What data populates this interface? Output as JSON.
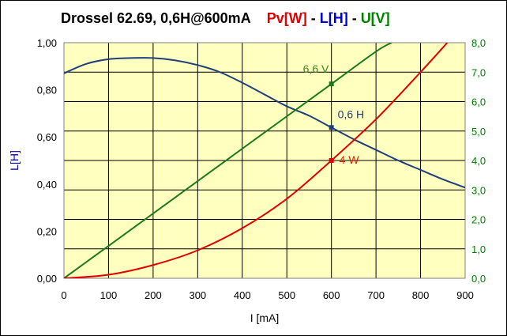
{
  "chart_data": {
    "type": "line",
    "title_parts": [
      {
        "text": "Drossel 62.69, 0,6H@600mA",
        "color": "#000000"
      },
      {
        "text": "Pv[W]",
        "color": "#e00000"
      },
      {
        "text": " - ",
        "color": "#000000"
      },
      {
        "text": "L[H]",
        "color": "#0000d0"
      },
      {
        "text": " - ",
        "color": "#000000"
      },
      {
        "text": "U[V]",
        "color": "#008000"
      }
    ],
    "xlabel": "I [mA]",
    "ylabel_left": "L[H]",
    "xlim": [
      0,
      900
    ],
    "ylim_left": [
      0,
      1
    ],
    "ylim_right": [
      0,
      8
    ],
    "x_ticks": [
      "0",
      "100",
      "200",
      "300",
      "400",
      "500",
      "600",
      "700",
      "800",
      "900"
    ],
    "y_left_ticks": [
      "0,00",
      "0,20",
      "0,40",
      "0,60",
      "0,80",
      "1,00"
    ],
    "y_right_ticks": [
      "0,0",
      "1,0",
      "2,0",
      "3,0",
      "4,0",
      "5,0",
      "6,0",
      "7,0",
      "8,0"
    ],
    "grid": true,
    "plot_background": "#ffffc0",
    "series": [
      {
        "key": "L",
        "axis": "left",
        "color": "#1f3f7a",
        "x": [
          0,
          50,
          100,
          150,
          200,
          250,
          300,
          350,
          400,
          450,
          500,
          550,
          600,
          650,
          700,
          750,
          800,
          850,
          900
        ],
        "y": [
          0.87,
          0.91,
          0.93,
          0.935,
          0.935,
          0.925,
          0.905,
          0.875,
          0.83,
          0.78,
          0.73,
          0.69,
          0.64,
          0.59,
          0.545,
          0.5,
          0.46,
          0.42,
          0.385
        ]
      },
      {
        "key": "U",
        "axis": "right",
        "color": "#1a7a1a",
        "x": [
          0,
          100,
          200,
          300,
          400,
          500,
          600,
          700,
          735
        ],
        "y": [
          0,
          1.1,
          2.2,
          3.3,
          4.4,
          5.5,
          6.6,
          7.7,
          8.0
        ]
      },
      {
        "key": "Pv",
        "axis": "right",
        "color": "#e00000",
        "x": [
          0,
          100,
          200,
          300,
          400,
          500,
          600,
          700,
          800,
          860
        ],
        "y": [
          0,
          0.12,
          0.45,
          0.95,
          1.7,
          2.7,
          4.0,
          5.4,
          7.0,
          8.0
        ]
      }
    ],
    "annotations": [
      {
        "series": "U",
        "x": 600,
        "y": 6.6,
        "label": "6,6 V",
        "color": "#3a8a1a"
      },
      {
        "series": "L",
        "x": 600,
        "y": 0.64,
        "label": "0,6 H",
        "color": "#1f3f7a"
      },
      {
        "series": "Pv",
        "x": 600,
        "y": 4.0,
        "label": "4 W",
        "color": "#e02000"
      }
    ]
  }
}
